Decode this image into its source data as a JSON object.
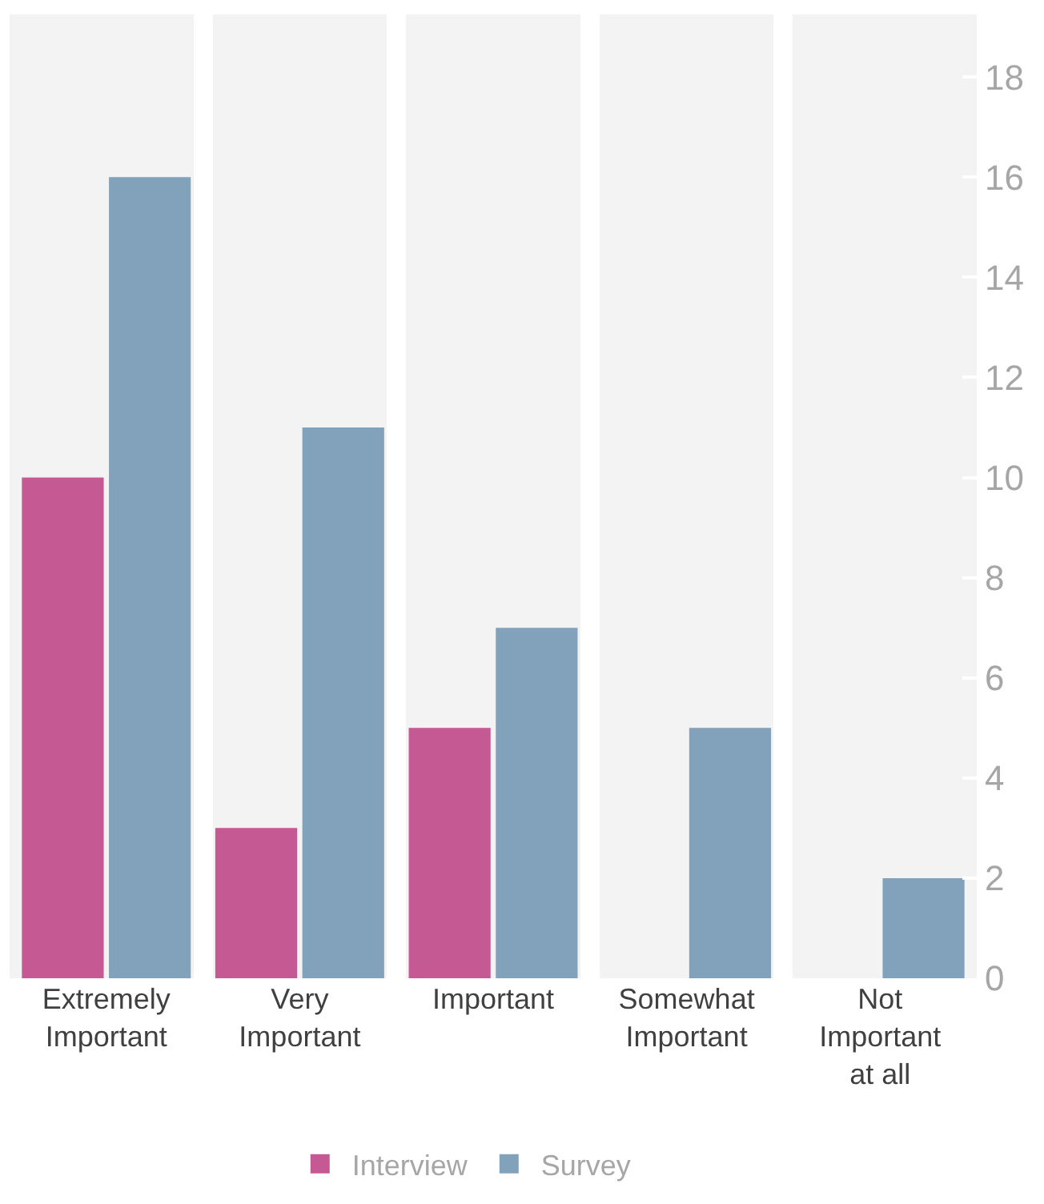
{
  "chart_data": {
    "type": "bar",
    "categories": [
      "Extremely Important",
      "Very Important",
      "Important",
      "Somewhat Important",
      "Not Important at all"
    ],
    "series": [
      {
        "name": "Interview",
        "color": "#c55994",
        "values": [
          10,
          3,
          5,
          0,
          0
        ]
      },
      {
        "name": "Survey",
        "color": "#82a1bb",
        "values": [
          16,
          11,
          7,
          5,
          2
        ]
      }
    ],
    "ylim": [
      0,
      19.25
    ],
    "yticks": [
      0,
      2,
      4,
      6,
      8,
      10,
      12,
      14,
      16,
      18
    ],
    "grid": "x",
    "legend": "bottom"
  }
}
